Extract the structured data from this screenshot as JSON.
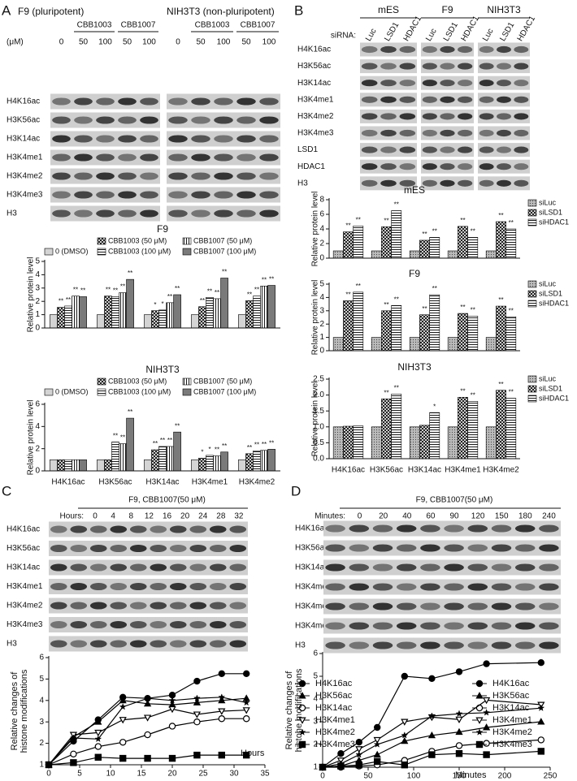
{
  "panel_labels": [
    "A",
    "B",
    "C",
    "D"
  ],
  "blot_a": {
    "cells": [
      "F9 (pluripotent)",
      "NIH3T3 (non-pluripotent)"
    ],
    "unit": "(μM)",
    "treatments": [
      "CBB1003",
      "CBB1007"
    ],
    "doses": [
      "0",
      "50",
      "100",
      "50",
      "100"
    ],
    "rows": [
      "H4K16ac",
      "H3K56ac",
      "H3K14ac",
      "H3K4me1",
      "H3K4me2",
      "H3K4me3",
      "H3"
    ]
  },
  "blot_b": {
    "cells": [
      "mES",
      "F9",
      "NIH3T3"
    ],
    "sirna_label": "siRNA:",
    "lanes": [
      "Luc",
      "LSD1",
      "HDAC1"
    ],
    "rows": [
      "H4K16ac",
      "H3K56ac",
      "H3K14ac",
      "H3K4me1",
      "H3K4me2",
      "H3K4me3",
      "LSD1",
      "HDAC1",
      "H3"
    ]
  },
  "blot_c": {
    "title": "F9, CBB1007(50 μM)",
    "axis_label": "Hours:",
    "lanes": [
      "0",
      "4",
      "8",
      "12",
      "16",
      "20",
      "24",
      "28",
      "32"
    ],
    "rows": [
      "H4K16ac",
      "H3K56ac",
      "H3K14ac",
      "H3K4me1",
      "H3K4me2",
      "H3K4me3",
      "H3"
    ]
  },
  "blot_d": {
    "title": "F9, CBB1007(50 μM)",
    "axis_label": "Minutes:",
    "lanes": [
      "0",
      "20",
      "40",
      "60",
      "90",
      "120",
      "150",
      "180",
      "240"
    ],
    "rows": [
      "H4K16ac",
      "H3K56ac",
      "H3K14ac",
      "H3K4me1",
      "H3K4me2",
      "H3K4me3",
      "H3"
    ]
  },
  "chart_data": [
    {
      "type": "bar",
      "title": "F9",
      "ylabel": "Relative protein level",
      "categories": [
        null,
        null,
        null,
        null,
        null
      ],
      "ylim": [
        0,
        5
      ],
      "yticks": [
        0,
        1,
        2,
        3,
        4,
        5
      ],
      "series": [
        {
          "name": "0 (DMSO)",
          "color": "#d4d4d4",
          "values": [
            1,
            1,
            1,
            1,
            1
          ]
        },
        {
          "name": "CBB1003 (50 μM)",
          "pattern": "cross",
          "values": [
            1.55,
            2.4,
            1.3,
            1.6,
            2.05
          ],
          "sig": [
            "**",
            "**",
            "*",
            "**",
            "**"
          ]
        },
        {
          "name": "CBB1003 (100 μM)",
          "pattern": "hlines",
          "values": [
            1.65,
            2.35,
            1.35,
            2.3,
            2.4
          ],
          "sig": [
            "**",
            "**",
            "*",
            "**",
            "**"
          ]
        },
        {
          "name": "CBB1007 (50 μM)",
          "pattern": "vlines",
          "values": [
            2.4,
            2.65,
            1.9,
            2.2,
            3.15
          ],
          "sig": [
            "**",
            "**",
            "**",
            "**",
            "**"
          ]
        },
        {
          "name": "CBB1007 (100 μM)",
          "color": "#7a7a7a",
          "values": [
            2.35,
            3.65,
            2.5,
            3.75,
            3.2
          ],
          "sig": [
            "**",
            "**",
            "**",
            "**",
            "**"
          ]
        }
      ]
    },
    {
      "type": "bar",
      "title": "NIH3T3",
      "ylabel": "Relative protein level",
      "categories": [
        "H4K16ac",
        "H3K56ac",
        "H3K14ac",
        "H3K4me1",
        "H3K4me2"
      ],
      "ylim": [
        0,
        6
      ],
      "yticks": [
        0,
        2,
        4,
        6
      ],
      "series": [
        {
          "name": "0 (DMSO)",
          "color": "#d4d4d4",
          "values": [
            1,
            1,
            1,
            1,
            1
          ]
        },
        {
          "name": "CBB1003 (50 μM)",
          "pattern": "cross",
          "values": [
            1,
            1,
            1.9,
            1.15,
            1.55
          ],
          "sig": [
            null,
            null,
            "**",
            "*",
            "**"
          ]
        },
        {
          "name": "CBB1003 (100 μM)",
          "pattern": "hlines",
          "values": [
            1,
            2.6,
            2.2,
            1.4,
            1.8
          ],
          "sig": [
            null,
            "**",
            "**",
            "*",
            "**"
          ]
        },
        {
          "name": "CBB1007 (50 μM)",
          "pattern": "vlines",
          "values": [
            1,
            2.45,
            2.2,
            1.35,
            1.85
          ],
          "sig": [
            null,
            "**",
            "**",
            "**",
            "**"
          ]
        },
        {
          "name": "CBB1007 (100 μM)",
          "color": "#7a7a7a",
          "values": [
            1,
            4.75,
            3.5,
            1.7,
            1.95
          ],
          "sig": [
            null,
            "**",
            "**",
            "**",
            "**"
          ]
        }
      ]
    },
    {
      "type": "bar",
      "title": "mES",
      "ylabel": "Relative protein level",
      "categories": [
        null,
        null,
        null,
        null,
        null
      ],
      "ylim": [
        0,
        8
      ],
      "yticks": [
        0,
        2,
        4,
        6,
        8
      ],
      "series": [
        {
          "name": "siLuc",
          "pattern": "dots",
          "values": [
            1,
            1,
            1,
            1,
            1
          ]
        },
        {
          "name": "siLSD1",
          "pattern": "cross",
          "values": [
            3.6,
            4.3,
            2.45,
            4.35,
            5.0
          ],
          "sig": [
            "**",
            "**",
            "**",
            "**",
            "**"
          ]
        },
        {
          "name": "siHDAC1",
          "pattern": "hlines",
          "values": [
            4.4,
            6.5,
            2.85,
            2.85,
            4.0
          ],
          "sig": [
            "**",
            "**",
            "**",
            "**",
            "**"
          ]
        }
      ]
    },
    {
      "type": "bar",
      "title": "F9",
      "ylabel": "Relative protein level",
      "categories": [
        null,
        null,
        null,
        null,
        null
      ],
      "ylim": [
        0,
        5
      ],
      "yticks": [
        0,
        1,
        2,
        3,
        4,
        5
      ],
      "series": [
        {
          "name": "siLuc",
          "pattern": "dots",
          "values": [
            1,
            1,
            1,
            1,
            1
          ]
        },
        {
          "name": "siLSD1",
          "pattern": "cross",
          "values": [
            3.75,
            3.0,
            2.7,
            2.8,
            3.35
          ],
          "sig": [
            "**",
            "**",
            "**",
            "**",
            "**"
          ]
        },
        {
          "name": "siHDAC1",
          "pattern": "hlines",
          "values": [
            4.4,
            3.4,
            4.2,
            2.6,
            2.55
          ],
          "sig": [
            "**",
            "**",
            "**",
            "**",
            "**"
          ]
        }
      ]
    },
    {
      "type": "bar",
      "title": "NIH3T3",
      "ylabel": "Relative protein level",
      "categories": [
        "H4K16ac",
        "H3K56ac",
        "H3K14ac",
        "H3K4me1",
        "H3K4me2"
      ],
      "ylim": [
        0,
        2.5
      ],
      "yticks": [
        {
          "value": 0,
          "label": "0.0"
        },
        {
          "value": 0.5,
          "label": "0.5"
        },
        {
          "value": 1,
          "label": "1.0"
        },
        {
          "value": 1.5,
          "label": "1.5"
        },
        {
          "value": 2,
          "label": "2.0"
        },
        {
          "value": 2.5,
          "label": "2.5"
        }
      ],
      "series": [
        {
          "name": "siLuc",
          "pattern": "dots",
          "values": [
            1,
            1,
            1,
            1,
            1
          ]
        },
        {
          "name": "siLSD1",
          "pattern": "cross",
          "values": [
            1.02,
            1.88,
            1.05,
            1.93,
            2.15
          ],
          "sig": [
            null,
            "**",
            null,
            "**",
            "**"
          ]
        },
        {
          "name": "siHDAC1",
          "pattern": "hlines",
          "values": [
            1.03,
            2.03,
            1.45,
            1.8,
            1.9
          ],
          "sig": [
            null,
            "**",
            "*",
            "**",
            "**"
          ]
        }
      ]
    },
    {
      "type": "line",
      "xlabel": "Hours",
      "ylabel": [
        "Relative changes of",
        "histone modifications"
      ],
      "x": [
        0,
        4,
        8,
        12,
        16,
        20,
        24,
        28,
        32
      ],
      "xlim": [
        0,
        35
      ],
      "xticks": [
        0,
        5,
        10,
        15,
        20,
        25,
        30,
        35
      ],
      "ylim": [
        1,
        6
      ],
      "yticks": [
        1,
        2,
        3,
        4,
        5,
        6
      ],
      "series": [
        {
          "name": "H4K16ac",
          "color": "#000000",
          "marker": "circle-filled",
          "values": [
            1,
            2.1,
            3.1,
            4.15,
            4.1,
            4.25,
            4.9,
            5.25,
            5.25
          ]
        },
        {
          "name": "H3K56ac",
          "color": "#000000",
          "marker": "triangle",
          "values": [
            1,
            2.3,
            3.0,
            4.0,
            3.85,
            3.8,
            3.9,
            4.0,
            4.1
          ]
        },
        {
          "name": "H3K14ac",
          "color": "#000000",
          "marker": "circle-open",
          "values": [
            1,
            1.5,
            1.85,
            2.05,
            2.4,
            2.8,
            3.0,
            3.15,
            3.15
          ]
        },
        {
          "name": "H3K4me1",
          "color": "#000000",
          "marker": "triangle-down-open",
          "values": [
            1,
            2.4,
            2.5,
            3.1,
            3.2,
            3.6,
            3.35,
            3.5,
            3.55
          ]
        },
        {
          "name": "H3K4me2",
          "color": "#000000",
          "marker": "star",
          "values": [
            1,
            2.25,
            2.2,
            3.7,
            4.1,
            4.0,
            4.1,
            4.15,
            3.9
          ]
        },
        {
          "name": "H3K4me3",
          "color": "#000000",
          "marker": "square",
          "values": [
            1,
            1.1,
            1.35,
            1.3,
            1.3,
            1.3,
            1.45,
            1.45,
            1.45
          ]
        }
      ]
    },
    {
      "type": "line",
      "xlabel": "Minutes",
      "ylabel": [
        "Relative changes of",
        "histone modifications"
      ],
      "x": [
        0,
        20,
        40,
        60,
        90,
        120,
        150,
        180,
        240
      ],
      "xlim": [
        0,
        250
      ],
      "xticks": [
        0,
        50,
        100,
        150,
        200,
        250
      ],
      "ylim": [
        1,
        6
      ],
      "yticks": [
        1,
        2,
        3,
        4,
        5,
        6
      ],
      "series": [
        {
          "name": "H4K16ac",
          "color": "#000000",
          "marker": "circle-filled",
          "values": [
            1,
            1.6,
            2.1,
            2.75,
            5.0,
            4.9,
            5.2,
            5.55,
            5.6
          ]
        },
        {
          "name": "H3K56ac",
          "color": "#000000",
          "marker": "triangle",
          "values": [
            1,
            1.05,
            1.3,
            1.55,
            2.15,
            2.4,
            2.55,
            2.75,
            3.0
          ]
        },
        {
          "name": "H3K14ac",
          "color": "#000000",
          "marker": "circle-open",
          "values": [
            1,
            1.0,
            1.05,
            1.1,
            1.3,
            1.7,
            1.95,
            2.05,
            2.2
          ]
        },
        {
          "name": "H3K4me1",
          "color": "#000000",
          "marker": "triangle-down-open",
          "values": [
            1,
            1.3,
            1.8,
            2.2,
            3.0,
            3.2,
            3.1,
            3.95,
            3.75
          ]
        },
        {
          "name": "H3K4me2",
          "color": "#000000",
          "marker": "star",
          "values": [
            1,
            1.15,
            1.55,
            2.0,
            2.4,
            3.25,
            3.35,
            3.4,
            3.6
          ]
        },
        {
          "name": "H3K4me3",
          "color": "#000000",
          "marker": "square",
          "values": [
            1,
            1.05,
            1.1,
            1.25,
            1.1,
            1.55,
            1.6,
            1.55,
            1.7
          ]
        }
      ]
    }
  ]
}
